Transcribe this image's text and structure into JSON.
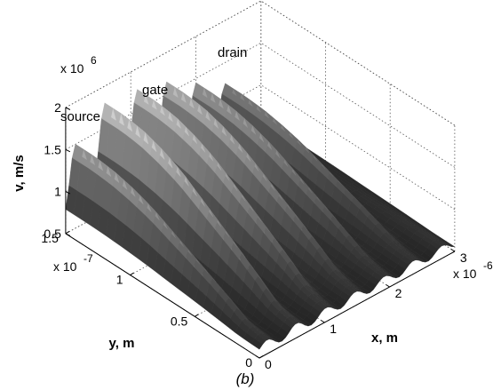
{
  "chart_data": {
    "type": "surface",
    "caption": "(b)",
    "zlabel": "v, m/s",
    "xlabel": "x, m",
    "ylabel": "y, m",
    "z_exponent": "x 10",
    "z_exponent_power": "6",
    "x_exponent": "x 10",
    "x_exponent_power": "-6",
    "y_exponent": "x 10",
    "y_exponent_power": "-7",
    "xlim": [
      0,
      3
    ],
    "ylim": [
      0,
      1.5
    ],
    "zlim": [
      0.5,
      2.0
    ],
    "x_ticks": [
      0,
      1,
      2,
      3
    ],
    "y_ticks": [
      0,
      0.5,
      1,
      1.5
    ],
    "z_ticks": [
      0.5,
      1,
      1.5,
      2
    ],
    "x_tick_labels": [
      "0",
      "1",
      "2",
      "3"
    ],
    "y_tick_labels": [
      "0",
      "0.5",
      "1",
      "1.5"
    ],
    "z_tick_labels": [
      "0.5",
      "1",
      "1.5",
      "2"
    ],
    "grid": true,
    "colormap": "gray",
    "annotations": [
      {
        "text": "source",
        "x": 0.25,
        "y": 1.5,
        "z": 1.85
      },
      {
        "text": "gate",
        "x": 0.9,
        "y": 1.5,
        "z": 1.9
      },
      {
        "text": "drain",
        "x": 1.7,
        "y": 1.5,
        "z": 2.0
      }
    ],
    "y_profile": {
      "y": [
        0,
        0.1,
        0.2,
        0.3,
        0.45,
        0.6,
        0.75,
        0.9,
        1.05,
        1.2,
        1.35,
        1.5
      ],
      "factor": [
        0.02,
        0.04,
        0.1,
        0.22,
        0.38,
        0.52,
        0.66,
        0.8,
        0.9,
        0.97,
        1.0,
        1.0
      ]
    },
    "ridges": [
      {
        "x": 0.15,
        "peak": 1.5,
        "width": 0.12
      },
      {
        "x": 0.6,
        "peak": 1.8,
        "width": 0.13
      },
      {
        "x": 1.1,
        "peak": 1.75,
        "width": 0.14
      },
      {
        "x": 1.55,
        "peak": 1.65,
        "width": 0.13
      },
      {
        "x": 2.0,
        "peak": 1.45,
        "width": 0.12
      },
      {
        "x": 2.45,
        "peak": 1.25,
        "width": 0.12
      }
    ],
    "base_velocity": 0.6
  }
}
